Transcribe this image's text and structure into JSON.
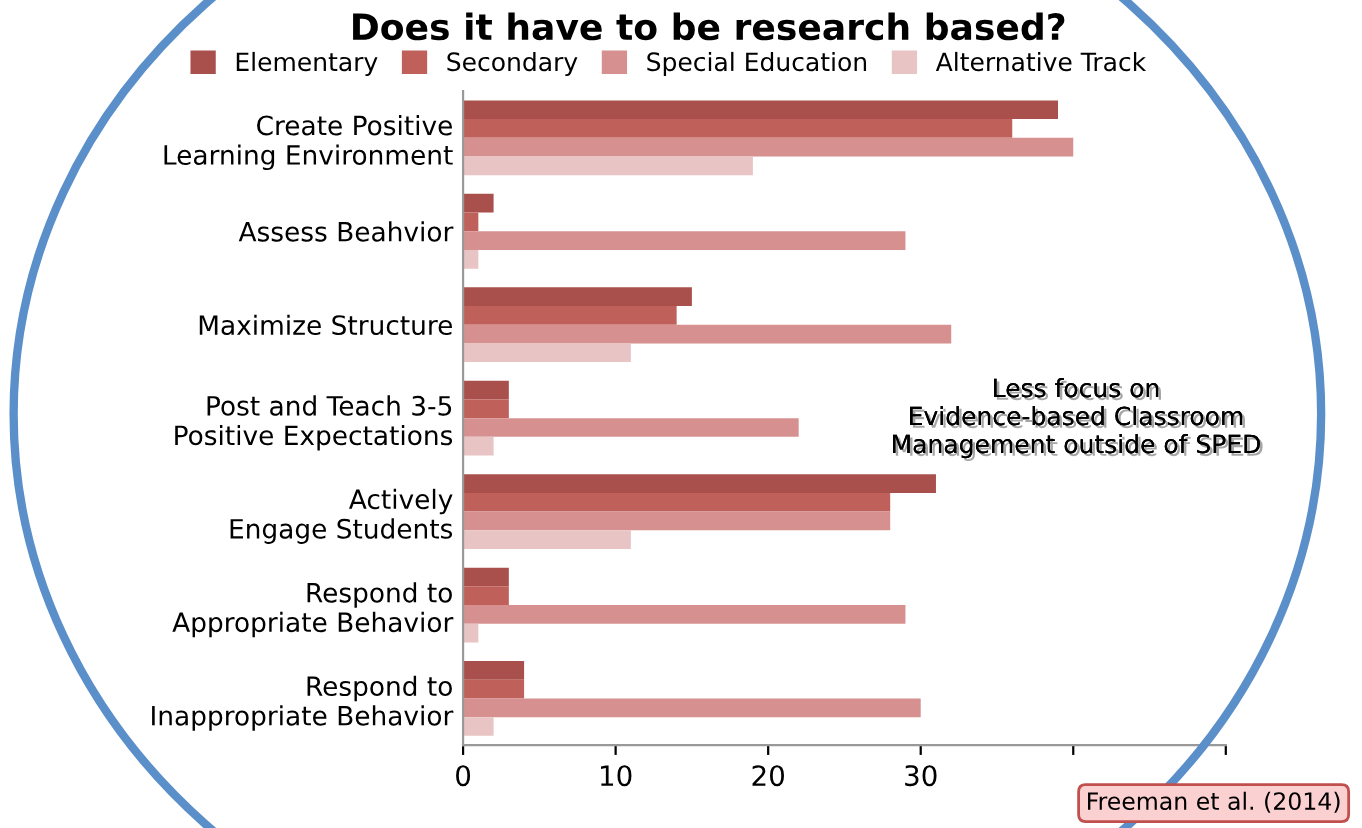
{
  "chart_data": {
    "type": "bar",
    "orientation": "horizontal",
    "title": "Does it have to be research based?",
    "categories": [
      "Create Positive Learning Environment",
      "Assess Beahvior",
      "Maximize Structure",
      "Post and Teach 3-5 Positive Expectations",
      "Actively Engage Students",
      "Respond to Appropriate Behavior",
      "Respond to Inappropriate Behavior"
    ],
    "series": [
      {
        "name": "Elementary",
        "color": "#a9504d",
        "values": [
          39,
          2,
          15,
          3,
          31,
          3,
          4
        ]
      },
      {
        "name": "Secondary",
        "color": "#c0605a",
        "values": [
          36,
          1,
          14,
          3,
          28,
          3,
          4
        ]
      },
      {
        "name": "Special Education",
        "color": "#d69090",
        "values": [
          40,
          29,
          32,
          22,
          28,
          29,
          30
        ]
      },
      {
        "name": "Alternative Track",
        "color": "#e8c4c4",
        "values": [
          19,
          1,
          11,
          2,
          11,
          1,
          2
        ]
      }
    ],
    "xlim": [
      0,
      50
    ],
    "xticks": [
      0,
      10,
      20,
      30,
      {
        "value": 40,
        "label": null
      },
      {
        "value": 50,
        "label": null
      }
    ],
    "grid": false,
    "legend": "top",
    "annotations": [
      "Less focus on Evidence-based Classroom Management outside of SPED",
      "Freeman et al. (2014)"
    ]
  }
}
